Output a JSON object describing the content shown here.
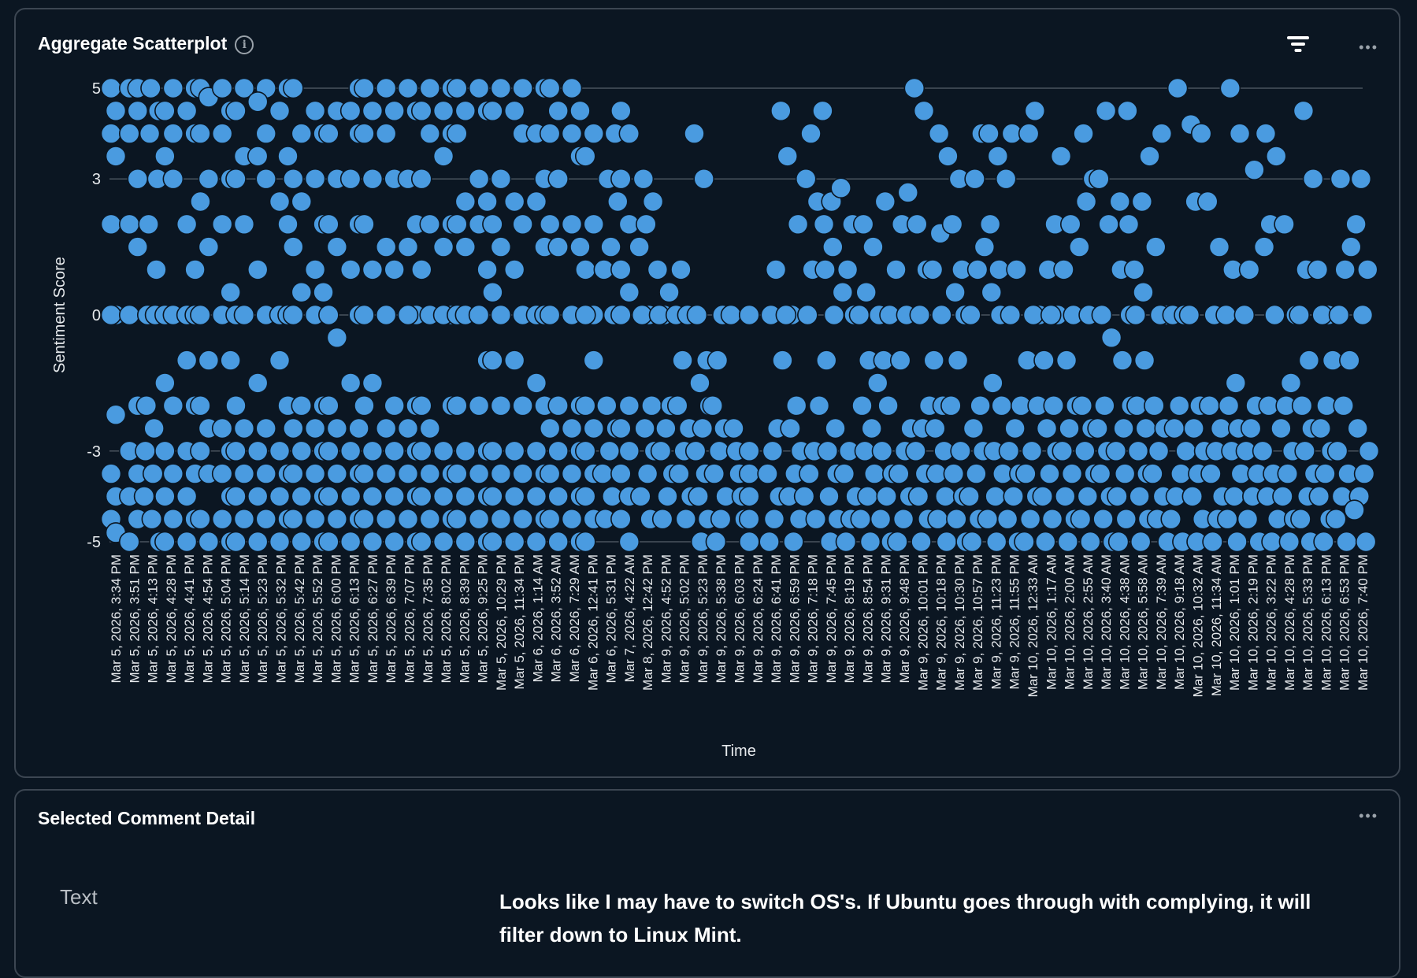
{
  "scatter_panel": {
    "title": "Aggregate Scatterplot",
    "info_icon": "i",
    "menu_icon": "•••"
  },
  "detail_panel": {
    "title": "Selected Comment Detail",
    "menu_icon": "•••",
    "field_label": "Text",
    "field_value": "Looks like I may have to switch OS's. If Ubuntu goes through with complying, it will filter down to Linux Mint."
  },
  "colors": {
    "background": "#0b1622",
    "point_fill": "#4a9be0",
    "point_stroke": "#0b1622",
    "grid": "#4a545e"
  },
  "chart_data": {
    "type": "scatter",
    "title": "Aggregate Scatterplot",
    "xlabel": "Time",
    "ylabel": "Sentiment Score",
    "ylim": [
      -5,
      5
    ],
    "yticks": [
      5,
      3,
      0,
      -3,
      -5
    ],
    "grid": true,
    "categories": [
      "Mar 5, 2026, 3:34 PM",
      "Mar 5, 2026, 3:51 PM",
      "Mar 5, 2026, 4:13 PM",
      "Mar 5, 2026, 4:28 PM",
      "Mar 5, 2026, 4:41 PM",
      "Mar 5, 2026, 4:54 PM",
      "Mar 5, 2026, 5:04 PM",
      "Mar 5, 2026, 5:14 PM",
      "Mar 5, 2026, 5:23 PM",
      "Mar 5, 2026, 5:32 PM",
      "Mar 5, 2026, 5:42 PM",
      "Mar 5, 2026, 5:52 PM",
      "Mar 5, 2026, 6:00 PM",
      "Mar 5, 2026, 6:13 PM",
      "Mar 5, 2026, 6:27 PM",
      "Mar 5, 2026, 6:39 PM",
      "Mar 5, 2026, 7:07 PM",
      "Mar 5, 2026, 7:35 PM",
      "Mar 5, 2026, 8:02 PM",
      "Mar 5, 2026, 8:39 PM",
      "Mar 5, 2026, 9:25 PM",
      "Mar 5, 2026, 10:29 PM",
      "Mar 5, 2026, 11:34 PM",
      "Mar 6, 2026, 1:14 AM",
      "Mar 6, 2026, 3:52 AM",
      "Mar 6, 2026, 7:29 AM",
      "Mar 6, 2026, 12:41 PM",
      "Mar 6, 2026, 5:31 PM",
      "Mar 7, 2026, 4:22 AM",
      "Mar 8, 2026, 12:42 PM",
      "Mar 9, 2026, 4:52 PM",
      "Mar 9, 2026, 5:02 PM",
      "Mar 9, 2026, 5:23 PM",
      "Mar 9, 2026, 5:38 PM",
      "Mar 9, 2026, 6:03 PM",
      "Mar 9, 2026, 6:24 PM",
      "Mar 9, 2026, 6:41 PM",
      "Mar 9, 2026, 6:59 PM",
      "Mar 9, 2026, 7:18 PM",
      "Mar 9, 2026, 7:45 PM",
      "Mar 9, 2026, 8:19 PM",
      "Mar 9, 2026, 8:54 PM",
      "Mar 9, 2026, 9:31 PM",
      "Mar 9, 2026, 9:48 PM",
      "Mar 9, 2026, 10:01 PM",
      "Mar 9, 2026, 10:18 PM",
      "Mar 9, 2026, 10:30 PM",
      "Mar 9, 2026, 10:57 PM",
      "Mar 9, 2026, 11:23 PM",
      "Mar 9, 2026, 11:55 PM",
      "Mar 10, 2026, 12:33 AM",
      "Mar 10, 2026, 1:17 AM",
      "Mar 10, 2026, 2:00 AM",
      "Mar 10, 2026, 2:55 AM",
      "Mar 10, 2026, 3:40 AM",
      "Mar 10, 2026, 4:38 AM",
      "Mar 10, 2026, 5:58 AM",
      "Mar 10, 2026, 7:39 AM",
      "Mar 10, 2026, 9:18 AM",
      "Mar 10, 2026, 10:32 AM",
      "Mar 10, 2026, 11:34 AM",
      "Mar 10, 2026, 1:01 PM",
      "Mar 10, 2026, 2:19 PM",
      "Mar 10, 2026, 3:22 PM",
      "Mar 10, 2026, 4:28 PM",
      "Mar 10, 2026, 5:33 PM",
      "Mar 10, 2026, 6:13 PM",
      "Mar 10, 2026, 6:53 PM",
      "Mar 10, 2026, 7:40 PM"
    ],
    "values_by_category": [
      [
        5,
        4.5,
        4,
        3.5,
        2,
        0,
        0,
        -2.2,
        -3.5,
        -4,
        -4.5,
        -4.8,
        5,
        4.5
      ],
      [
        5,
        4.5,
        4,
        3,
        2,
        1.5,
        0,
        -2,
        -3,
        -3.5,
        -4,
        -4.5,
        -5,
        5
      ],
      [
        5,
        4.5,
        4,
        3,
        2,
        1,
        0,
        0,
        -2,
        -2.5,
        -3,
        -3.5,
        -4,
        -4.5,
        -5
      ],
      [
        5,
        4.5,
        4,
        3.5,
        3,
        0,
        0,
        -1.5,
        -2,
        -3,
        -3.5,
        -4,
        -4.5,
        -5
      ],
      [
        5,
        4.5,
        4,
        2,
        1,
        0,
        0,
        -1,
        -2,
        -3,
        -3.5,
        -4,
        -4.5,
        -5
      ],
      [
        5,
        4.8,
        4,
        3,
        2.5,
        1.5,
        0,
        -1,
        -2,
        -2.5,
        -3,
        -3.5,
        -4.5,
        -5
      ],
      [
        5,
        4.5,
        4,
        3,
        2,
        0.5,
        0,
        -1,
        -2.5,
        -3,
        -3.5,
        -4,
        -4.5,
        -5
      ],
      [
        5,
        4.5,
        3.5,
        3,
        2,
        0,
        0,
        -2,
        -2.5,
        -3,
        -3.5,
        -4,
        -4.5,
        -5
      ],
      [
        5,
        4.7,
        4,
        3.5,
        3,
        1,
        0,
        -1.5,
        -2.5,
        -3,
        -3.5,
        -4,
        -4.5,
        -5
      ],
      [
        5,
        4.5,
        3.5,
        2.5,
        2,
        0,
        0,
        -1,
        -2,
        -3,
        -3.5,
        -4,
        -4.5,
        -5
      ],
      [
        5,
        4,
        3,
        2.5,
        1.5,
        0.5,
        0,
        -2,
        -2.5,
        -3,
        -3.5,
        -4,
        -4.5,
        -5
      ],
      [
        4.5,
        4,
        3,
        2,
        1,
        0.5,
        0,
        -2,
        -2.5,
        -3,
        -3.5,
        -4,
        -4.5,
        -5
      ],
      [
        4.5,
        4,
        3,
        2,
        1.5,
        0,
        -0.5,
        -2,
        -2.5,
        -3,
        -3.5,
        -4,
        -4.5,
        -5
      ],
      [
        5,
        4.5,
        4,
        3,
        2,
        1,
        0,
        -1.5,
        -2.5,
        -3,
        -3.5,
        -4,
        -4.5,
        -5
      ],
      [
        5,
        4.5,
        4,
        3,
        2,
        1,
        0,
        -1.5,
        -2,
        -3,
        -3.5,
        -4,
        -4.5,
        -5
      ],
      [
        5,
        4.5,
        4,
        3,
        1.5,
        1,
        0,
        -2,
        -2.5,
        -3,
        -3.5,
        -4,
        -4.5,
        -5
      ],
      [
        5,
        4.5,
        3,
        2,
        1.5,
        0,
        0,
        -2,
        -2.5,
        -3,
        -3.5,
        -4,
        -4.5,
        -5
      ],
      [
        5,
        4.5,
        4,
        3,
        2,
        1,
        0,
        -2,
        -2.5,
        -3,
        -3.5,
        -4,
        -4.5,
        -5
      ],
      [
        5,
        4.5,
        4,
        3.5,
        2,
        1.5,
        0,
        0,
        -2,
        -3,
        -3.5,
        -4,
        -4.5,
        -5
      ],
      [
        5,
        4.5,
        4,
        2.5,
        2,
        1.5,
        0,
        0,
        -2,
        -3,
        -3.5,
        -4,
        -4.5,
        -5
      ],
      [
        5,
        4.5,
        3,
        2.5,
        2,
        1,
        0,
        -1,
        -2,
        -3,
        -3.5,
        -4,
        -4.5,
        -5
      ],
      [
        5,
        4.5,
        3,
        2,
        1.5,
        0.5,
        0,
        -1,
        -2,
        -3,
        -3.5,
        -4,
        -4.5,
        -5
      ],
      [
        5,
        4.5,
        4,
        2.5,
        2,
        1,
        0,
        -1,
        -2,
        -3,
        -3.5,
        -4,
        -4.5,
        -5
      ],
      [
        5,
        4,
        3,
        2.5,
        1.5,
        0,
        0,
        -1.5,
        -2,
        -3,
        -3.5,
        -4,
        -4.5,
        -5
      ],
      [
        5,
        4.5,
        4,
        3,
        2,
        1.5,
        0,
        -2,
        -2.5,
        -3,
        -3.5,
        -4,
        -4.5,
        -5
      ],
      [
        5,
        4.5,
        4,
        3.5,
        2,
        1.5,
        0,
        -2,
        -2.5,
        -3,
        -3.5,
        -4,
        -4.5,
        -5
      ],
      [
        4,
        3.5,
        2,
        1,
        0,
        0,
        -1,
        -2,
        -2.5,
        -3,
        -3.5,
        -4,
        -4.5,
        -5
      ],
      [
        4,
        3,
        2.5,
        1.5,
        1,
        0,
        -2,
        -2.5,
        -3,
        -3.5,
        -4,
        -4.5
      ],
      [
        4.5,
        4,
        3,
        2,
        1,
        0.5,
        0,
        -2,
        -2.5,
        -3,
        -3.5,
        -4,
        -4.5,
        -5
      ],
      [
        3,
        2.5,
        2,
        1.5,
        0,
        0,
        -2,
        -2.5,
        -3,
        -3.5,
        -4,
        -4.5
      ],
      [
        1,
        0.5,
        0,
        0,
        -2,
        -2.5,
        -3,
        -3.5,
        -4,
        -4.5
      ],
      [
        1,
        0,
        0,
        -1,
        -2,
        -2.5,
        -3,
        -3.5,
        -4,
        -4.5
      ],
      [
        4,
        3,
        0,
        -1,
        -1.5,
        -2,
        -2.5,
        -3,
        -3.5,
        -4,
        -4.5,
        -5
      ],
      [
        0,
        0,
        -1,
        -2,
        -2.5,
        -3,
        -3.5,
        -4,
        -4.5,
        -5
      ],
      [
        0,
        -2.5,
        -3,
        -3.5,
        -4,
        -4.5
      ],
      [
        0,
        0,
        -3,
        -3.5,
        -4,
        -4.5,
        -5
      ],
      [
        4.5,
        1,
        0,
        -1,
        -2.5,
        -3,
        -3.5,
        -4,
        -4.5,
        -5
      ],
      [
        3.5,
        2,
        0,
        0,
        -2,
        -2.5,
        -3,
        -3.5,
        -4,
        -4.5,
        -5
      ],
      [
        4,
        3,
        2.5,
        1,
        0,
        -2,
        -3,
        -3.5,
        -4,
        -4.5
      ],
      [
        4.5,
        2.5,
        2,
        1.5,
        1,
        0,
        -1,
        -2.5,
        -3,
        -3.5,
        -4,
        -4.5,
        -5
      ],
      [
        2.8,
        2,
        1,
        0.5,
        0,
        -3,
        -3.5,
        -4,
        -4.5,
        -5
      ],
      [
        2,
        1.5,
        0.5,
        0,
        -1,
        -2,
        -2.5,
        -3,
        -3.5,
        -4,
        -4.5,
        -5
      ],
      [
        2.5,
        0,
        0,
        -1,
        -1.5,
        -2,
        -3,
        -3.5,
        -4,
        -4.5,
        -5
      ],
      [
        2.7,
        2,
        1,
        0,
        -1,
        -2.5,
        -3,
        -3.5,
        -4,
        -4.5,
        -5
      ],
      [
        5,
        4.5,
        2,
        1,
        0,
        -2,
        -2.5,
        -3,
        -3.5,
        -4,
        -4.5,
        -5
      ],
      [
        4,
        3.5,
        1.8,
        1,
        0,
        -1,
        -2,
        -2.5,
        -3,
        -3.5,
        -4,
        -4.5,
        -5
      ],
      [
        3,
        2,
        1,
        0.5,
        0,
        -1,
        -2,
        -3,
        -3.5,
        -4,
        -4.5,
        -5
      ],
      [
        4,
        3,
        1.5,
        1,
        0,
        -2,
        -2.5,
        -3,
        -3.5,
        -4,
        -4.5,
        -5
      ],
      [
        4,
        3.5,
        2,
        1,
        0.5,
        0,
        -1.5,
        -2,
        -3,
        -3.5,
        -4,
        -4.5,
        -5
      ],
      [
        4,
        3,
        1,
        0,
        -2,
        -2.5,
        -3,
        -3.5,
        -4,
        -4.5,
        -5
      ],
      [
        4.5,
        4,
        0,
        0,
        -1,
        -2,
        -3,
        -3.5,
        -4,
        -4.5,
        -5
      ],
      [
        2,
        1,
        0,
        0,
        -1,
        -2,
        -2.5,
        -3,
        -3.5,
        -4,
        -4.5,
        -5
      ],
      [
        3.5,
        2,
        1,
        0,
        -1,
        -2,
        -2.5,
        -3,
        -3.5,
        -4,
        -4.5,
        -5
      ],
      [
        4,
        3,
        2.5,
        1.5,
        0,
        -2,
        -2.5,
        -3,
        -3.5,
        -4,
        -4.5,
        -5
      ],
      [
        4.5,
        3,
        2,
        0,
        -0.5,
        -2,
        -2.5,
        -3,
        -3.5,
        -4,
        -4.5,
        -5
      ],
      [
        4.5,
        2.5,
        2,
        1,
        0,
        -1,
        -2,
        -2.5,
        -3,
        -3.5,
        -4,
        -4.5,
        -5
      ],
      [
        3.5,
        2.5,
        1,
        0.5,
        0,
        -1,
        -2,
        -2.5,
        -3,
        -3.5,
        -4,
        -4.5,
        -5
      ],
      [
        4,
        1.5,
        0,
        0,
        -2,
        -2.5,
        -3,
        -3.5,
        -4,
        -4.5,
        -5
      ],
      [
        5,
        0,
        0,
        -2,
        -2.5,
        -3,
        -3.5,
        -4,
        -4.5,
        -5
      ],
      [
        4.2,
        4,
        2.5,
        0,
        -2,
        -2.5,
        -3,
        -3.5,
        -4,
        -4.5,
        -5
      ],
      [
        2.5,
        1.5,
        0,
        -2,
        -2.5,
        -3,
        -3.5,
        -4,
        -4.5,
        -5
      ],
      [
        5,
        4,
        1,
        0,
        -1.5,
        -2,
        -2.5,
        -3,
        -3.5,
        -4,
        -4.5,
        -5
      ],
      [
        3.2,
        1,
        0,
        -2,
        -2.5,
        -3,
        -3.5,
        -4,
        -4.5,
        -5
      ],
      [
        4,
        3.5,
        2,
        1.5,
        0,
        -2,
        -3,
        -3.5,
        -4,
        -4.5,
        -5
      ],
      [
        2,
        0,
        -1.5,
        -2,
        -2.5,
        -3,
        -3.5,
        -4,
        -4.5,
        -5
      ],
      [
        4.5,
        3,
        1,
        0,
        -1,
        -2,
        -2.5,
        -3,
        -3.5,
        -4,
        -4.5,
        -5
      ],
      [
        1,
        0,
        0,
        -1,
        -2,
        -2.5,
        -3,
        -3.5,
        -4,
        -4.5,
        -5
      ],
      [
        3,
        1.5,
        1,
        0,
        -1,
        -2,
        -3,
        -3.5,
        -4,
        -4.5,
        -5
      ],
      [
        3,
        2,
        1,
        0,
        -2.5,
        -3,
        -3.5,
        -4,
        -4.3,
        -5
      ]
    ]
  }
}
